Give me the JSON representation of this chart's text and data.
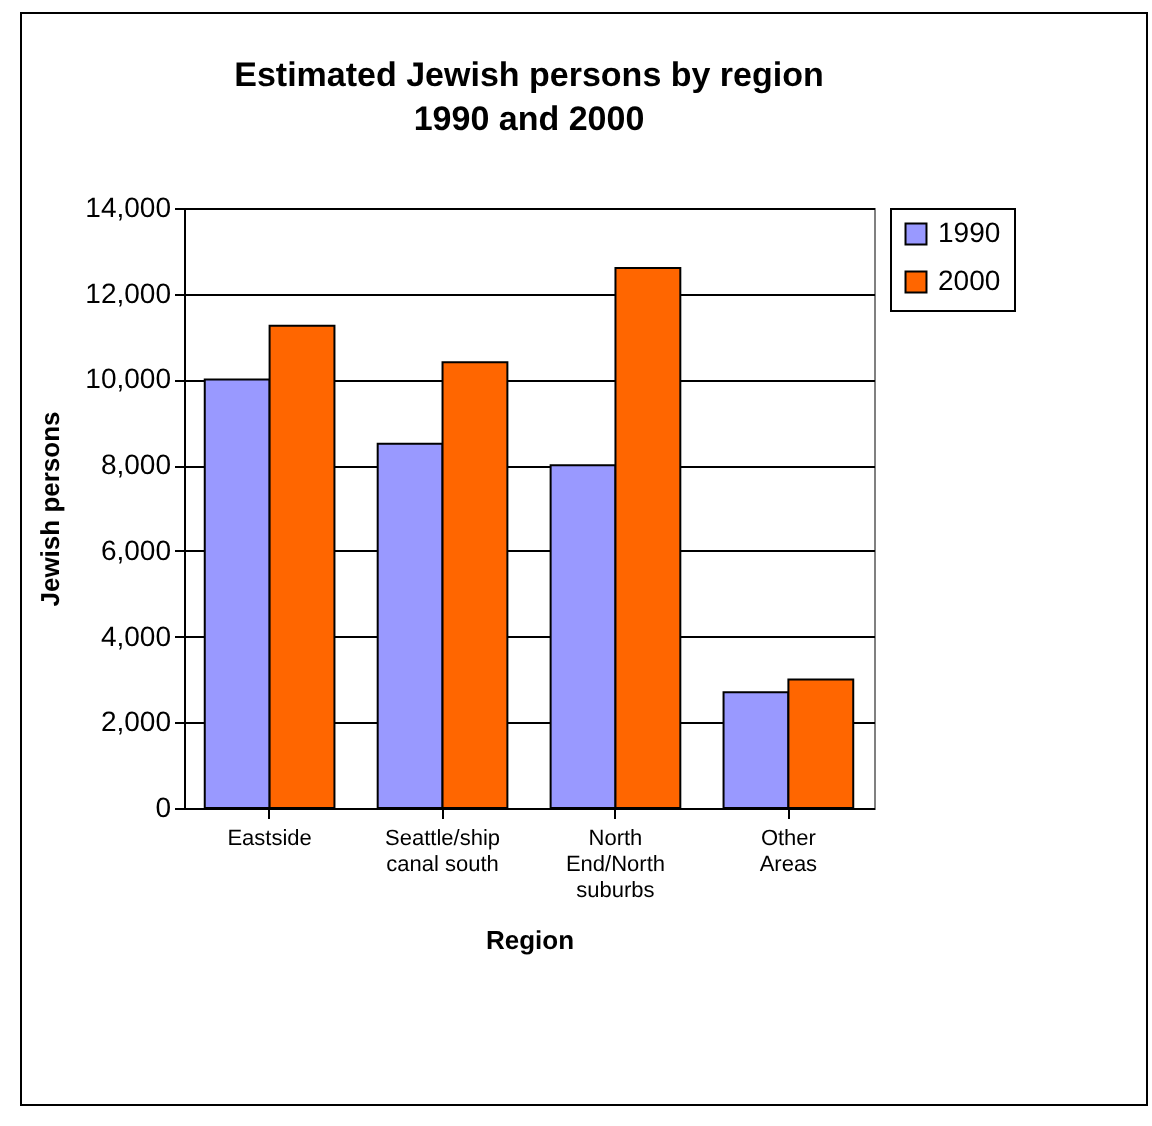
{
  "chart_data": {
    "type": "bar",
    "title": "Estimated Jewish persons by region\n1990 and 2000",
    "xlabel": "Region",
    "ylabel": "Jewish persons",
    "categories": [
      "Eastside",
      "Seattle/ship\ncanal south",
      "North\nEnd/North\nsuburbs",
      "Other\nAreas"
    ],
    "series": [
      {
        "name": "1990",
        "color": "#9999ff",
        "values": [
          10000,
          8500,
          8000,
          2700
        ]
      },
      {
        "name": "2000",
        "color": "#ff6600",
        "values": [
          11250,
          10400,
          12600,
          3000
        ]
      }
    ],
    "ylim": [
      0,
      14000
    ],
    "yticks": [
      0,
      {
        "value": 2000,
        "label": "2,000"
      },
      {
        "value": 4000,
        "label": "4,000"
      },
      {
        "value": 6000,
        "label": "6,000"
      },
      {
        "value": 8000,
        "label": "8,000"
      },
      {
        "value": 10000,
        "label": "10,000"
      },
      {
        "value": 12000,
        "label": "12,000"
      },
      {
        "value": 14000,
        "label": "14,000"
      }
    ],
    "grid": "y",
    "legend": "right"
  }
}
